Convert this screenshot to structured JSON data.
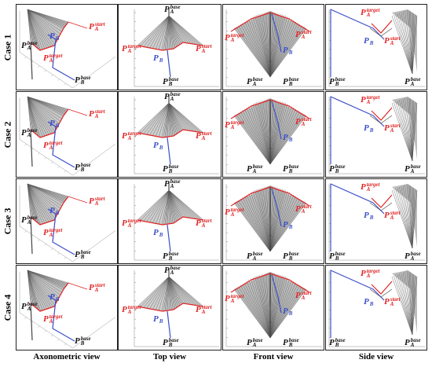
{
  "rows": [
    "Case 1",
    "Case 2",
    "Case 3",
    "Case 4"
  ],
  "columns": [
    "Axonometric view",
    "Top view",
    "Front view",
    "Side view"
  ],
  "point_labels": {
    "start_A": {
      "base": "P",
      "sub": "A",
      "sup": "start"
    },
    "target_A": {
      "base": "P",
      "sub": "A",
      "sup": "target"
    },
    "base_A": {
      "base": "P",
      "sub": "A",
      "sup": "base"
    },
    "base_B": {
      "base": "P",
      "sub": "B",
      "sup": "base"
    },
    "P_B": {
      "base": "P",
      "sub": "B",
      "sup": ""
    }
  },
  "colors": {
    "arm_A": "#e02424",
    "arm_B": "#3b4fc8",
    "mesh": "#555555",
    "label_black": "#111111"
  }
}
